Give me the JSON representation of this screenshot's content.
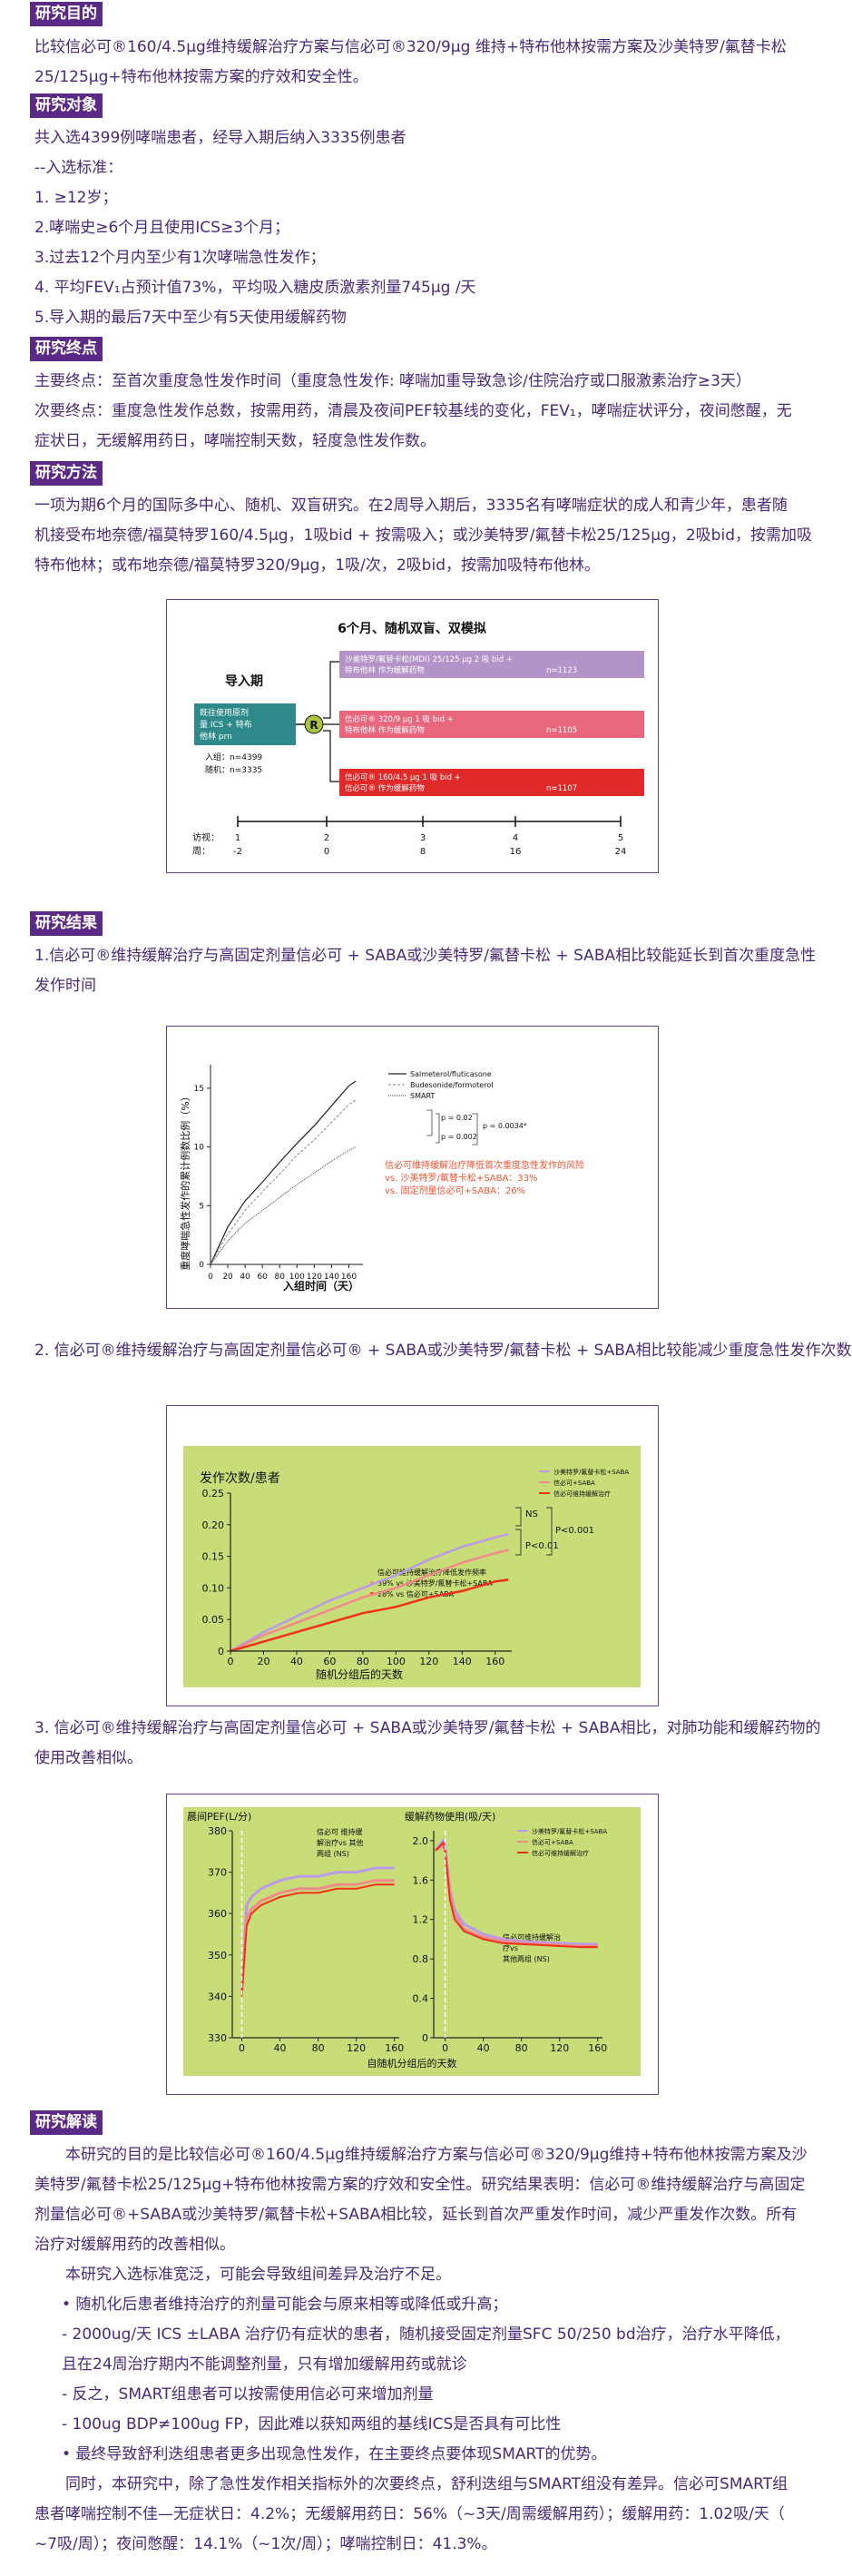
{
  "sections": {
    "purpose": {
      "header": "研究目的",
      "lines": [
        "比较信必可®160/4.5μg维持缓解治疗方案与信必可®320/9μg 维持+特布他林按需方案及沙美特罗/氟替卡松",
        "25/125μg+特布他林按需方案的疗效和安全性。"
      ]
    },
    "subjects": {
      "header": "研究对象",
      "lines": [
        "共入选4399例哮喘患者，经导入期后纳入3335例患者",
        "--入选标准：",
        "1. ≥12岁；",
        "2.哮喘史≥6个月且使用ICS≥3个月；",
        "3.过去12个月内至少有1次哮喘急性发作；",
        "4. 平均FEV₁占预计值73%，平均吸入糖皮质激素剂量745μg /天",
        "5.导入期的最后7天中至少有5天使用缓解药物"
      ]
    },
    "endpoints": {
      "header": "研究终点",
      "lines": [
        "主要终点：至首次重度急性发作时间（重度急性发作: 哮喘加重导致急诊/住院治疗或口服激素治疗≥3天）",
        "次要终点：重度急性发作总数，按需用药，清晨及夜间PEF较基线的变化，FEV₁，哮喘症状评分，夜间憋醒，无",
        "症状日，无缓解用药日，哮喘控制天数，轻度急性发作数。"
      ]
    },
    "methods": {
      "header": "研究方法",
      "lines": [
        "一项为期6个月的国际多中心、随机、双盲研究。在2周导入期后，3335名有哮喘症状的成人和青少年，患者随",
        "机接受布地奈德/福莫特罗160/4.5μg，1吸bid + 按需吸入；或沙美特罗/氟替卡松25/125μg，2吸bid，按需加吸",
        "特布他林；或布地奈德/福莫特罗320/9μg，1吸/次，2吸bid，按需加吸特布他林。"
      ]
    },
    "results": {
      "header": "研究结果",
      "item1": [
        "1.信必可®维持缓解治疗与高固定剂量信必可 + SABA或沙美特罗/氟替卡松 + SABA相比较能延长到首次重度急性",
        "发作时间"
      ],
      "item2": "2. 信必可®维持缓解治疗与高固定剂量信必可® + SABA或沙美特罗/氟替卡松 + SABA相比较能减少重度急性发作次数",
      "item3": [
        "3.  信必可®维持缓解治疗与高固定剂量信必可 + SABA或沙美特罗/氟替卡松 + SABA相比，对肺功能和缓解药物的",
        "使用改善相似。"
      ]
    },
    "interpretation": {
      "header": "研究解读",
      "lines": [
        "本研究的目的是比较信必可®160/4.5μg维持缓解治疗方案与信必可®320/9μg维持+特布他林按需方案及沙",
        "美特罗/氟替卡松25/125μg+特布他林按需方案的疗效和安全性。研究结果表明：信必可®维持缓解治疗与高固定",
        "剂量信必可®+SABA或沙美特罗/氟替卡松+SABA相比较，延长到首次严重发作时间，减少严重发作次数。所有",
        "治疗对缓解用药的改善相似。",
        "本研究入选标准宽泛，可能会导致组间差异及治疗不足。",
        "• 随机化后患者维持治疗的剂量可能会与原来相等或降低或升高；",
        "- 2000ug/天 ICS ±LABA 治疗仍有症状的患者，随机接受固定剂量SFC 50/250 bd治疗，治疗水平降低，",
        "  且在24周治疗期内不能调整剂量，只有增加缓解用药或就诊",
        "- 反之，SMART组患者可以按需使用信必可来增加剂量",
        "- 100ug BDP≠100ug FP，因此难以获知两组的基线ICS是否具有可比性",
        "• 最终导致舒利迭组患者更多出现急性发作，在主要终点要体现SMART的优势。",
        "同时，本研究中，除了急性发作相关指标外的次要终点，舒利迭组与SMART组没有差异。信必可SMART组",
        "患者哮喘控制不佳—无症状日：4.2%；无缓解用药日：56%（~3天/周需缓解用药）；缓解用药：1.02吸/天（",
        "~7吸/周）；夜间憋醒：14.1%（~1次/周）；哮喘控制日：41.3%。"
      ]
    }
  },
  "fig1": {
    "title": "6个月、随机双盲、双模拟",
    "runin": "导入期",
    "runin_box": [
      "既往使用原剂",
      "量 ICS + 特布",
      "他林 prn"
    ],
    "enroll": "入组：n=4399",
    "random": "随机：n=3335",
    "r": "R",
    "arm1": [
      "沙美特罗/氟替卡松(MDI) 25/125 μg 2 吸 bid +",
      "特布他林 作为缓解药物",
      "n=1123"
    ],
    "arm2": [
      "信必可® 320/9 μg 1 吸 bid +",
      "特布他林 作为缓解药物",
      "n=1105"
    ],
    "arm3": [
      "信必可® 160/4.5 μg 1 吸 bid +",
      "信必可® 作为缓解药物",
      "n=1107"
    ],
    "visit_label": "访视：",
    "week_label": "周：",
    "visits": [
      "1",
      "2",
      "3",
      "4",
      "5"
    ],
    "weeks": [
      "-2",
      "0",
      "8",
      "16",
      "24"
    ],
    "colors": {
      "arm1": "#b493c8",
      "arm2": "#e8677c",
      "arm3": "#e02a2a",
      "runin": "#2e8a8a",
      "r": "#a8c43c"
    }
  },
  "chart1": {
    "type": "line",
    "ylabel": "重度哮喘急性发作的累计例数比例（%）",
    "xlabel": "入组时间（天）",
    "x_ticks": [
      "0",
      "20",
      "40",
      "60",
      "80",
      "100",
      "120",
      "140",
      "160"
    ],
    "y_ticks": [
      "0",
      "5",
      "10",
      "15"
    ],
    "legend": [
      "Salmeterol/fluticasone",
      "Budesonide/formoterol",
      "SMART"
    ],
    "p1": "p = 0.02",
    "p2": "p = 0.002",
    "p3": "p = 0.0034*",
    "annotation": [
      "信必可维持缓解治疗降低首次重度急性发作的风险",
      "vs. 沙美特罗/氟替卡松+SABA：33%",
      "vs. 固定剂量信必可+SABA：26%"
    ],
    "chart_data": {
      "type": "line",
      "x": [
        0,
        20,
        40,
        60,
        80,
        100,
        120,
        140,
        160,
        168
      ],
      "series": [
        {
          "name": "Salmeterol/fluticasone",
          "values": [
            0,
            3.2,
            5.4,
            7.0,
            8.7,
            10.3,
            11.8,
            13.5,
            15.2,
            15.6
          ]
        },
        {
          "name": "Budesonide/formoterol",
          "values": [
            0,
            2.6,
            4.6,
            6.2,
            7.7,
            9.3,
            10.6,
            12.1,
            13.6,
            14.0
          ]
        },
        {
          "name": "SMART",
          "values": [
            0,
            2.0,
            3.5,
            4.6,
            5.7,
            6.8,
            7.8,
            8.8,
            9.7,
            10.0
          ]
        }
      ],
      "ylim": [
        0,
        17
      ],
      "xlim": [
        0,
        170
      ]
    }
  },
  "chart2": {
    "type": "line",
    "title": "发作次数/患者",
    "xlabel": "随机分组后的天数",
    "x_ticks": [
      "0",
      "20",
      "40",
      "60",
      "80",
      "100",
      "120",
      "140",
      "160"
    ],
    "y_ticks": [
      "0",
      "0.05",
      "0.10",
      "0.15",
      "0.20",
      "0.25"
    ],
    "legend": [
      "沙美特罗/氟替卡松+SABA",
      "信必可+SABA",
      "信必可维持缓解治疗"
    ],
    "ns": "NS",
    "p1": "P<0.01",
    "p2": "P<0.001",
    "annotation": [
      "信必可维持缓解治疗降低发作频率",
      "39% vs 沙美特罗/氟替卡松+SABA",
      "28% vs 信必可+SABA"
    ],
    "chart_data": {
      "type": "line",
      "x": [
        0,
        20,
        40,
        60,
        80,
        100,
        120,
        140,
        160,
        168
      ],
      "series": [
        {
          "name": "沙美特罗/氟替卡松+SABA",
          "values": [
            0,
            0.03,
            0.055,
            0.08,
            0.1,
            0.12,
            0.145,
            0.165,
            0.18,
            0.185
          ]
        },
        {
          "name": "信必可+SABA",
          "values": [
            0,
            0.025,
            0.045,
            0.065,
            0.085,
            0.1,
            0.12,
            0.14,
            0.155,
            0.16
          ]
        },
        {
          "name": "信必可维持缓解治疗",
          "values": [
            0,
            0.015,
            0.03,
            0.045,
            0.06,
            0.07,
            0.085,
            0.095,
            0.11,
            0.113
          ]
        }
      ],
      "ylim": [
        0,
        0.25
      ],
      "xlim": [
        0,
        170
      ]
    },
    "colors": {
      "bg": "#c8dc78",
      "s1": "#b99be8",
      "s2": "#f08a8a",
      "s3": "#f0301a"
    }
  },
  "chart3": {
    "left_title": "晨间PEF(L/分)",
    "right_title": "缓解药物使用(吸/天)",
    "left_y_ticks": [
      "330",
      "340",
      "350",
      "360",
      "370",
      "380"
    ],
    "right_y_ticks": [
      "0",
      "0.4",
      "0.8",
      "1.2",
      "1.6",
      "2.0"
    ],
    "x_ticks": [
      "0",
      "40",
      "80",
      "120",
      "160"
    ],
    "xlabel": "自随机分组后的天数",
    "left_note": [
      "信必可 维持缓",
      "解治疗vs 其他",
      "两组 (NS)"
    ],
    "right_note": [
      "信必可维持缓解治",
      "疗vs",
      "其他两组 (NS)"
    ],
    "legend": [
      "沙美特罗/氟替卡松+SABA",
      "信必可+SABA",
      "信必可维持缓解治疗"
    ],
    "chart_data": [
      {
        "type": "line",
        "title": "晨间PEF(L/分)",
        "x": [
          0,
          5,
          10,
          20,
          40,
          60,
          80,
          100,
          120,
          140,
          160
        ],
        "series": [
          {
            "name": "沙美特罗/氟替卡松+SABA",
            "values": [
              342,
              362,
              364,
              366,
              368,
              369,
              369,
              370,
              370,
              371,
              371
            ]
          },
          {
            "name": "信必可+SABA",
            "values": [
              341,
              359,
              361,
              363,
              365,
              366,
              366,
              367,
              367,
              368,
              368
            ]
          },
          {
            "name": "信必可维持缓解治疗",
            "values": [
              340,
              357,
              360,
              362,
              364,
              365,
              365,
              366,
              366,
              367,
              367
            ]
          }
        ],
        "ylim": [
          330,
          380
        ],
        "xlim": [
          -10,
          165
        ]
      },
      {
        "type": "line",
        "title": "缓解药物使用(吸/天)",
        "x": [
          -10,
          -2,
          0,
          5,
          10,
          20,
          40,
          60,
          80,
          100,
          120,
          140,
          160
        ],
        "series": [
          {
            "name": "沙美特罗/氟替卡松+SABA",
            "values": [
              1.9,
              2.0,
              1.95,
              1.5,
              1.3,
              1.15,
              1.05,
              1.0,
              0.98,
              0.97,
              0.96,
              0.95,
              0.95
            ]
          },
          {
            "name": "信必可+SABA",
            "values": [
              1.9,
              1.95,
              1.9,
              1.45,
              1.25,
              1.1,
              1.02,
              0.98,
              0.96,
              0.95,
              0.94,
              0.93,
              0.93
            ]
          },
          {
            "name": "信必可维持缓解治疗",
            "values": [
              1.9,
              1.98,
              1.9,
              1.4,
              1.2,
              1.08,
              1.0,
              0.96,
              0.95,
              0.94,
              0.93,
              0.92,
              0.92
            ]
          }
        ],
        "ylim": [
          0,
          2.1
        ],
        "xlim": [
          -12,
          165
        ]
      }
    ]
  }
}
